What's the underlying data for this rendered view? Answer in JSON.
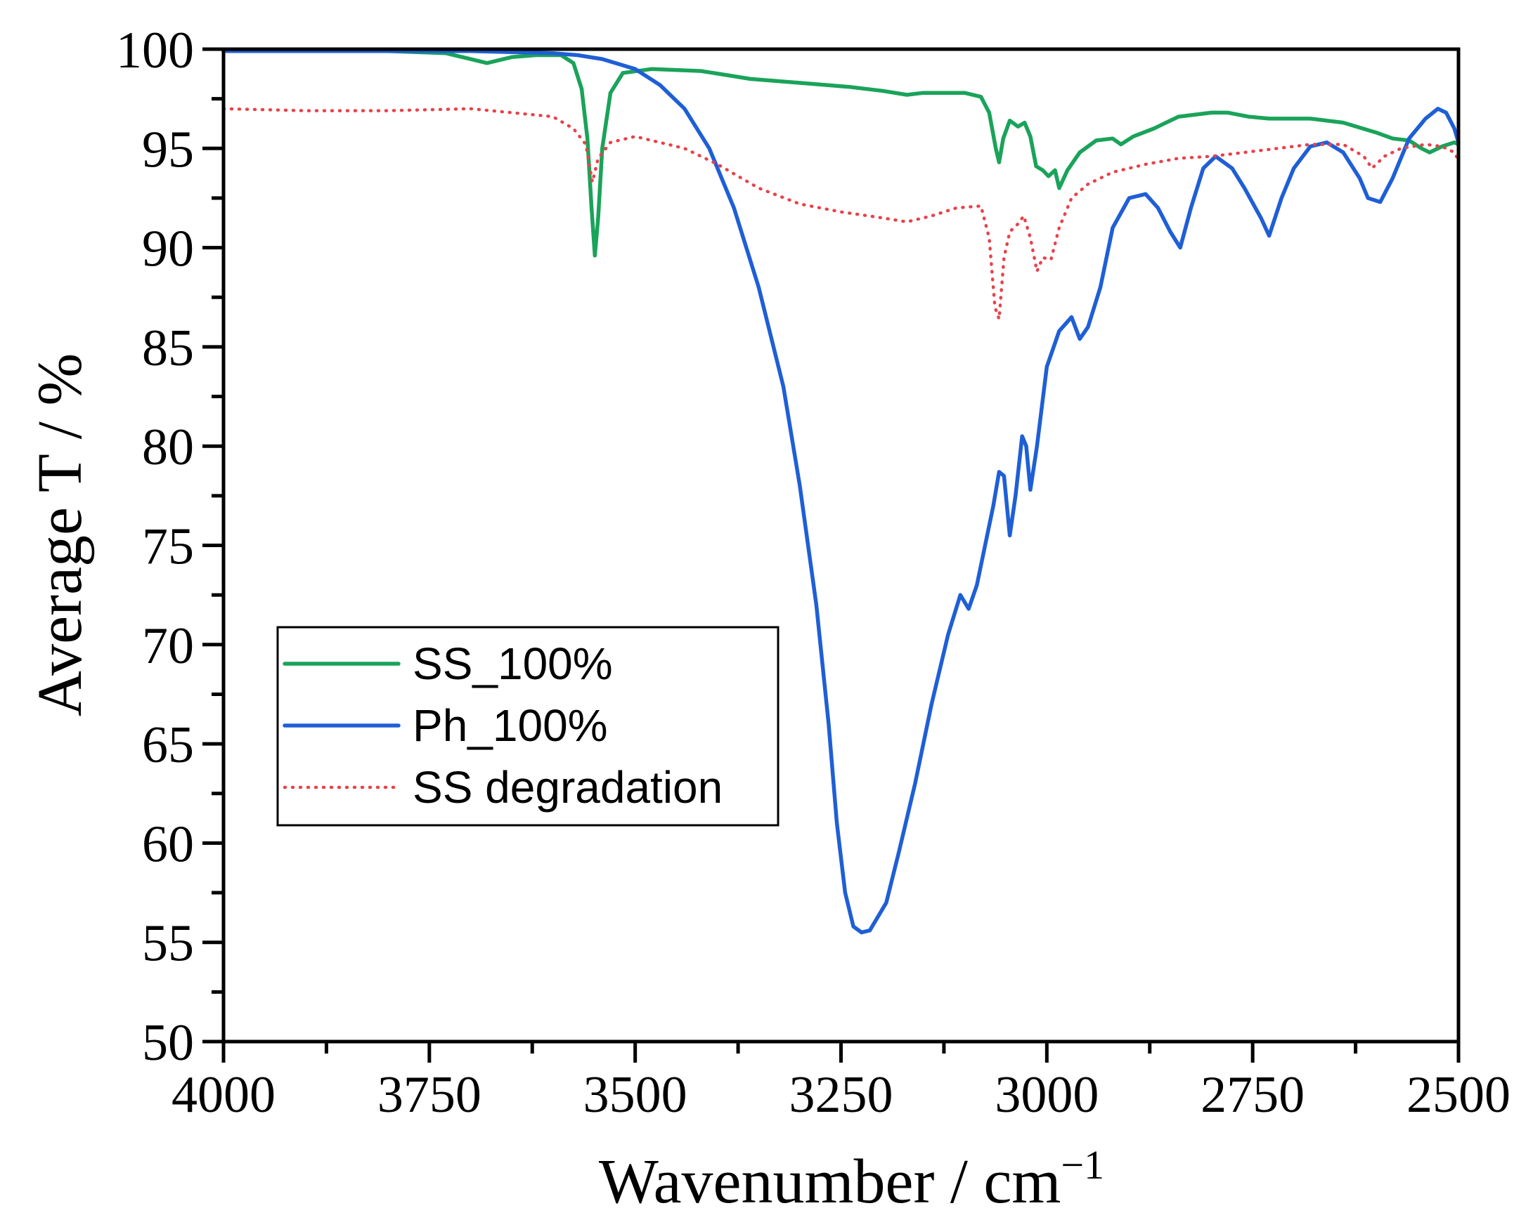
{
  "chart_data": {
    "type": "line",
    "title": "",
    "xlabel": "Wavenumber / cm",
    "xlabel_superscript": "−1",
    "ylabel": "Average T / %",
    "xlim": [
      4000,
      2500
    ],
    "ylim": [
      50,
      100
    ],
    "x_reversed": true,
    "xticks": [
      4000,
      3750,
      3500,
      3250,
      3000,
      2750,
      2500
    ],
    "xticks_minor": [
      3875,
      3625,
      3375,
      3125,
      2875,
      2625
    ],
    "yticks": [
      50,
      55,
      60,
      65,
      70,
      75,
      80,
      85,
      90,
      95,
      100
    ],
    "grid": false,
    "legend_position": "middle-left",
    "series": [
      {
        "name": "SS_100%",
        "color": "#1aa35a",
        "style": "solid",
        "points": [
          [
            4000,
            99.9
          ],
          [
            3800,
            99.9
          ],
          [
            3730,
            99.8
          ],
          [
            3700,
            99.5
          ],
          [
            3680,
            99.3
          ],
          [
            3650,
            99.6
          ],
          [
            3620,
            99.7
          ],
          [
            3590,
            99.7
          ],
          [
            3575,
            99.3
          ],
          [
            3565,
            98.0
          ],
          [
            3558,
            95.5
          ],
          [
            3553,
            92.0
          ],
          [
            3549,
            89.6
          ],
          [
            3545,
            91.5
          ],
          [
            3540,
            95.0
          ],
          [
            3530,
            97.8
          ],
          [
            3515,
            98.8
          ],
          [
            3480,
            99.0
          ],
          [
            3420,
            98.9
          ],
          [
            3360,
            98.5
          ],
          [
            3300,
            98.3
          ],
          [
            3240,
            98.1
          ],
          [
            3200,
            97.9
          ],
          [
            3170,
            97.7
          ],
          [
            3150,
            97.8
          ],
          [
            3100,
            97.8
          ],
          [
            3080,
            97.6
          ],
          [
            3070,
            96.8
          ],
          [
            3062,
            95.0
          ],
          [
            3058,
            94.3
          ],
          [
            3053,
            95.5
          ],
          [
            3045,
            96.4
          ],
          [
            3035,
            96.1
          ],
          [
            3027,
            96.3
          ],
          [
            3020,
            95.6
          ],
          [
            3013,
            94.1
          ],
          [
            3005,
            93.9
          ],
          [
            2998,
            93.6
          ],
          [
            2990,
            93.9
          ],
          [
            2985,
            93.0
          ],
          [
            2975,
            93.9
          ],
          [
            2960,
            94.8
          ],
          [
            2940,
            95.4
          ],
          [
            2920,
            95.5
          ],
          [
            2910,
            95.2
          ],
          [
            2895,
            95.6
          ],
          [
            2870,
            96.0
          ],
          [
            2840,
            96.6
          ],
          [
            2800,
            96.8
          ],
          [
            2780,
            96.8
          ],
          [
            2755,
            96.6
          ],
          [
            2730,
            96.5
          ],
          [
            2680,
            96.5
          ],
          [
            2640,
            96.3
          ],
          [
            2600,
            95.8
          ],
          [
            2580,
            95.5
          ],
          [
            2560,
            95.4
          ],
          [
            2545,
            95.0
          ],
          [
            2535,
            94.8
          ],
          [
            2520,
            95.1
          ],
          [
            2505,
            95.3
          ],
          [
            2500,
            95.2
          ]
        ]
      },
      {
        "name": "Ph_100%",
        "color": "#1f5fd6",
        "style": "solid",
        "points": [
          [
            4000,
            99.9
          ],
          [
            3700,
            99.9
          ],
          [
            3600,
            99.8
          ],
          [
            3570,
            99.7
          ],
          [
            3540,
            99.5
          ],
          [
            3500,
            99.0
          ],
          [
            3470,
            98.2
          ],
          [
            3440,
            97.0
          ],
          [
            3410,
            95.0
          ],
          [
            3380,
            92.0
          ],
          [
            3350,
            88.0
          ],
          [
            3320,
            83.0
          ],
          [
            3300,
            78.0
          ],
          [
            3280,
            72.0
          ],
          [
            3265,
            66.0
          ],
          [
            3255,
            61.0
          ],
          [
            3245,
            57.5
          ],
          [
            3235,
            55.8
          ],
          [
            3225,
            55.5
          ],
          [
            3215,
            55.6
          ],
          [
            3205,
            56.3
          ],
          [
            3195,
            57.0
          ],
          [
            3180,
            59.5
          ],
          [
            3160,
            63.0
          ],
          [
            3140,
            67.0
          ],
          [
            3120,
            70.5
          ],
          [
            3105,
            72.5
          ],
          [
            3095,
            71.8
          ],
          [
            3085,
            73.0
          ],
          [
            3075,
            75.0
          ],
          [
            3065,
            77.0
          ],
          [
            3058,
            78.7
          ],
          [
            3052,
            78.5
          ],
          [
            3045,
            75.5
          ],
          [
            3038,
            77.5
          ],
          [
            3030,
            80.5
          ],
          [
            3025,
            80.0
          ],
          [
            3020,
            77.8
          ],
          [
            3012,
            80.0
          ],
          [
            3000,
            84.0
          ],
          [
            2985,
            85.8
          ],
          [
            2970,
            86.5
          ],
          [
            2960,
            85.4
          ],
          [
            2950,
            86.0
          ],
          [
            2935,
            88.0
          ],
          [
            2920,
            91.0
          ],
          [
            2900,
            92.5
          ],
          [
            2880,
            92.7
          ],
          [
            2865,
            92.0
          ],
          [
            2850,
            90.8
          ],
          [
            2838,
            90.0
          ],
          [
            2825,
            92.0
          ],
          [
            2810,
            94.0
          ],
          [
            2795,
            94.6
          ],
          [
            2775,
            94.0
          ],
          [
            2760,
            93.0
          ],
          [
            2740,
            91.5
          ],
          [
            2730,
            90.6
          ],
          [
            2715,
            92.5
          ],
          [
            2700,
            94.0
          ],
          [
            2680,
            95.1
          ],
          [
            2660,
            95.3
          ],
          [
            2640,
            94.8
          ],
          [
            2620,
            93.5
          ],
          [
            2610,
            92.5
          ],
          [
            2595,
            92.3
          ],
          [
            2580,
            93.5
          ],
          [
            2560,
            95.5
          ],
          [
            2540,
            96.5
          ],
          [
            2525,
            97.0
          ],
          [
            2515,
            96.8
          ],
          [
            2505,
            96.0
          ],
          [
            2500,
            95.3
          ]
        ]
      },
      {
        "name": "SS degradation",
        "color": "#e8424a",
        "style": "dotted",
        "points": [
          [
            4000,
            97.0
          ],
          [
            3900,
            96.9
          ],
          [
            3800,
            96.9
          ],
          [
            3700,
            97.0
          ],
          [
            3650,
            96.8
          ],
          [
            3600,
            96.6
          ],
          [
            3575,
            96.0
          ],
          [
            3560,
            95.2
          ],
          [
            3552,
            93.3
          ],
          [
            3545,
            94.5
          ],
          [
            3530,
            95.3
          ],
          [
            3500,
            95.6
          ],
          [
            3470,
            95.3
          ],
          [
            3440,
            95.0
          ],
          [
            3400,
            94.2
          ],
          [
            3350,
            93.0
          ],
          [
            3300,
            92.2
          ],
          [
            3250,
            91.8
          ],
          [
            3200,
            91.5
          ],
          [
            3170,
            91.3
          ],
          [
            3140,
            91.6
          ],
          [
            3110,
            92.0
          ],
          [
            3080,
            92.1
          ],
          [
            3070,
            90.5
          ],
          [
            3063,
            87.0
          ],
          [
            3058,
            86.4
          ],
          [
            3052,
            89.5
          ],
          [
            3045,
            90.8
          ],
          [
            3035,
            91.2
          ],
          [
            3028,
            91.6
          ],
          [
            3020,
            90.5
          ],
          [
            3012,
            88.8
          ],
          [
            3005,
            89.5
          ],
          [
            2995,
            89.4
          ],
          [
            2985,
            91.0
          ],
          [
            2970,
            92.5
          ],
          [
            2950,
            93.2
          ],
          [
            2920,
            93.8
          ],
          [
            2880,
            94.2
          ],
          [
            2840,
            94.5
          ],
          [
            2800,
            94.6
          ],
          [
            2760,
            94.8
          ],
          [
            2720,
            95.0
          ],
          [
            2680,
            95.2
          ],
          [
            2640,
            95.2
          ],
          [
            2615,
            94.6
          ],
          [
            2605,
            94.0
          ],
          [
            2590,
            94.6
          ],
          [
            2570,
            95.0
          ],
          [
            2540,
            95.2
          ],
          [
            2520,
            95.1
          ],
          [
            2505,
            94.8
          ],
          [
            2500,
            94.4
          ]
        ]
      }
    ]
  }
}
